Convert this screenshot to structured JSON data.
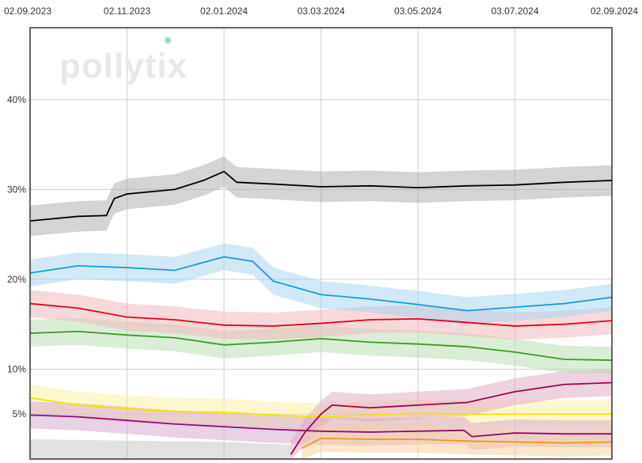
{
  "branding": {
    "logo_text": "pollytix",
    "logo_dot_color": "#9fd9c2"
  },
  "chart_data": {
    "type": "line",
    "title": "",
    "xlabel": "",
    "ylabel": "",
    "x_ticks": [
      "02.09.2023",
      "02.11.2023",
      "02.01.2024",
      "03.03.2024",
      "03.05.2024",
      "03.07.2024",
      "02.09.2024"
    ],
    "y_ticks": [
      {
        "value": 5,
        "label": "5%"
      },
      {
        "value": 10,
        "label": "10%"
      },
      {
        "value": 20,
        "label": "20%"
      },
      {
        "value": 30,
        "label": "30%"
      },
      {
        "value": 40,
        "label": "40%"
      }
    ],
    "ylim": [
      0,
      48
    ],
    "grid": true,
    "series": [
      {
        "color": "#000000",
        "band_color": "#aaaaaa",
        "points": [
          [
            "02.09.2023",
            26.5
          ],
          [
            "02.10.2023",
            27.0
          ],
          [
            "20.10.2023",
            27.1
          ],
          [
            "25.10.2023",
            29.0
          ],
          [
            "02.11.2023",
            29.5
          ],
          [
            "02.12.2023",
            30.0
          ],
          [
            "20.12.2023",
            31.0
          ],
          [
            "02.01.2024",
            32.0
          ],
          [
            "10.01.2024",
            30.8
          ],
          [
            "02.02.2024",
            30.6
          ],
          [
            "03.03.2024",
            30.3
          ],
          [
            "03.04.2024",
            30.4
          ],
          [
            "03.05.2024",
            30.2
          ],
          [
            "03.06.2024",
            30.4
          ],
          [
            "03.07.2024",
            30.5
          ],
          [
            "03.08.2024",
            30.8
          ],
          [
            "02.09.2024",
            31.0
          ]
        ]
      },
      {
        "color": "#1a9ad6",
        "band_color": "#9fd3f0",
        "points": [
          [
            "02.09.2023",
            20.7
          ],
          [
            "02.10.2023",
            21.5
          ],
          [
            "02.11.2023",
            21.3
          ],
          [
            "02.12.2023",
            21.0
          ],
          [
            "02.01.2024",
            22.5
          ],
          [
            "20.01.2024",
            22.0
          ],
          [
            "02.02.2024",
            19.8
          ],
          [
            "03.03.2024",
            18.3
          ],
          [
            "03.04.2024",
            17.8
          ],
          [
            "03.05.2024",
            17.2
          ],
          [
            "03.06.2024",
            16.5
          ],
          [
            "03.07.2024",
            16.9
          ],
          [
            "03.08.2024",
            17.3
          ],
          [
            "02.09.2024",
            18.0
          ]
        ]
      },
      {
        "color": "#e3001b",
        "band_color": "#f2b3b8",
        "points": [
          [
            "02.09.2023",
            17.3
          ],
          [
            "02.10.2023",
            16.8
          ],
          [
            "02.11.2023",
            15.8
          ],
          [
            "02.12.2023",
            15.5
          ],
          [
            "02.01.2024",
            14.9
          ],
          [
            "02.02.2024",
            14.8
          ],
          [
            "03.03.2024",
            15.1
          ],
          [
            "03.04.2024",
            15.5
          ],
          [
            "03.05.2024",
            15.6
          ],
          [
            "03.06.2024",
            15.2
          ],
          [
            "03.07.2024",
            14.8
          ],
          [
            "03.08.2024",
            15.0
          ],
          [
            "02.09.2024",
            15.4
          ]
        ]
      },
      {
        "color": "#3d9a2a",
        "band_color": "#b6dcae",
        "points": [
          [
            "02.09.2023",
            14.0
          ],
          [
            "02.10.2023",
            14.2
          ],
          [
            "02.11.2023",
            13.8
          ],
          [
            "02.12.2023",
            13.5
          ],
          [
            "02.01.2024",
            12.7
          ],
          [
            "02.02.2024",
            13.0
          ],
          [
            "03.03.2024",
            13.4
          ],
          [
            "03.04.2024",
            13.0
          ],
          [
            "03.05.2024",
            12.8
          ],
          [
            "03.06.2024",
            12.5
          ],
          [
            "03.07.2024",
            11.9
          ],
          [
            "03.08.2024",
            11.1
          ],
          [
            "02.09.2024",
            11.0
          ]
        ]
      },
      {
        "color": "#f5e200",
        "band_color": "#fcf0a0",
        "points": [
          [
            "02.09.2023",
            6.8
          ],
          [
            "02.10.2023",
            6.0
          ],
          [
            "02.11.2023",
            5.6
          ],
          [
            "02.12.2023",
            5.3
          ],
          [
            "02.01.2024",
            5.2
          ],
          [
            "02.02.2024",
            4.9
          ],
          [
            "03.03.2024",
            4.7
          ],
          [
            "03.04.2024",
            4.9
          ],
          [
            "03.05.2024",
            5.1
          ],
          [
            "03.06.2024",
            5.0
          ],
          [
            "03.07.2024",
            5.0
          ],
          [
            "03.08.2024",
            5.0
          ],
          [
            "02.09.2024",
            5.0
          ]
        ]
      },
      {
        "color": "#8a0f7a",
        "band_color": "#d4a6cc",
        "points": [
          [
            "02.09.2023",
            4.9
          ],
          [
            "02.10.2023",
            4.7
          ],
          [
            "02.11.2023",
            4.3
          ],
          [
            "02.12.2023",
            3.9
          ],
          [
            "02.01.2024",
            3.6
          ],
          [
            "02.02.2024",
            3.3
          ],
          [
            "03.03.2024",
            3.1
          ],
          [
            "03.04.2024",
            3.0
          ],
          [
            "03.05.2024",
            3.1
          ],
          [
            "01.06.2024",
            3.2
          ],
          [
            "06.06.2024",
            2.5
          ],
          [
            "03.07.2024",
            2.9
          ],
          [
            "03.08.2024",
            2.8
          ],
          [
            "02.09.2024",
            2.8
          ]
        ]
      },
      {
        "color": "#a3004f",
        "band_color": "#e0a6c2",
        "points": [
          [
            "13.02.2024",
            0.5
          ],
          [
            "22.02.2024",
            3.0
          ],
          [
            "03.03.2024",
            5.0
          ],
          [
            "10.03.2024",
            6.0
          ],
          [
            "03.04.2024",
            5.7
          ],
          [
            "03.05.2024",
            6.0
          ],
          [
            "03.06.2024",
            6.3
          ],
          [
            "03.07.2024",
            7.5
          ],
          [
            "03.08.2024",
            8.3
          ],
          [
            "02.09.2024",
            8.5
          ]
        ]
      },
      {
        "color": "#f7941d",
        "band_color": "#f8cf9a",
        "points": [
          [
            "20.02.2024",
            1.2
          ],
          [
            "03.03.2024",
            2.3
          ],
          [
            "03.04.2024",
            2.2
          ],
          [
            "03.05.2024",
            2.2
          ],
          [
            "03.06.2024",
            2.0
          ],
          [
            "03.07.2024",
            1.9
          ],
          [
            "03.08.2024",
            1.8
          ],
          [
            "02.09.2024",
            1.9
          ]
        ]
      }
    ]
  }
}
